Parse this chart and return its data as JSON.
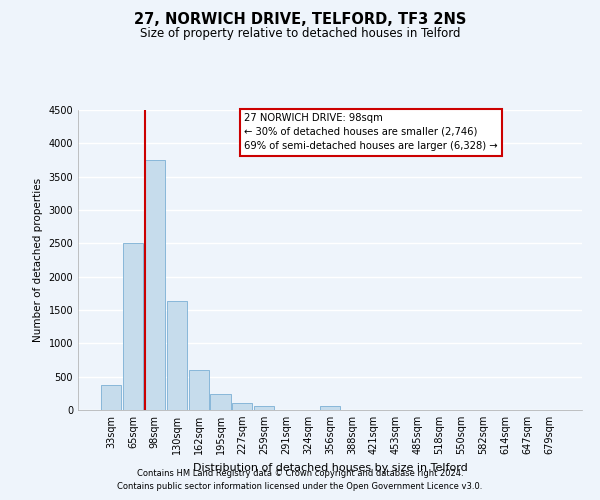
{
  "title": "27, NORWICH DRIVE, TELFORD, TF3 2NS",
  "subtitle": "Size of property relative to detached houses in Telford",
  "xlabel": "Distribution of detached houses by size in Telford",
  "ylabel": "Number of detached properties",
  "footnote1": "Contains HM Land Registry data © Crown copyright and database right 2024.",
  "footnote2": "Contains public sector information licensed under the Open Government Licence v3.0.",
  "annotation_title": "27 NORWICH DRIVE: 98sqm",
  "annotation_line1": "← 30% of detached houses are smaller (2,746)",
  "annotation_line2": "69% of semi-detached houses are larger (6,328) →",
  "bar_labels": [
    "33sqm",
    "65sqm",
    "98sqm",
    "130sqm",
    "162sqm",
    "195sqm",
    "227sqm",
    "259sqm",
    "291sqm",
    "324sqm",
    "356sqm",
    "388sqm",
    "421sqm",
    "453sqm",
    "485sqm",
    "518sqm",
    "550sqm",
    "582sqm",
    "614sqm",
    "647sqm",
    "679sqm"
  ],
  "bar_values": [
    380,
    2510,
    3750,
    1640,
    600,
    245,
    100,
    55,
    0,
    0,
    55,
    0,
    0,
    0,
    0,
    0,
    0,
    0,
    0,
    0,
    0
  ],
  "bar_color": "#c6dcec",
  "bar_edge_color": "#7bafd4",
  "highlight_bar_index": 2,
  "highlight_line_color": "#cc0000",
  "ylim": [
    0,
    4500
  ],
  "yticks": [
    0,
    500,
    1000,
    1500,
    2000,
    2500,
    3000,
    3500,
    4000,
    4500
  ],
  "annotation_box_color": "#ffffff",
  "annotation_box_edge": "#cc0000",
  "bg_color": "#eef4fb",
  "grid_color": "#ffffff"
}
